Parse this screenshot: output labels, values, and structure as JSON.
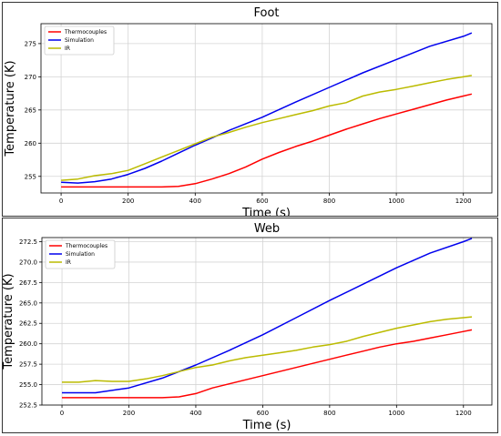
{
  "chart_data": [
    {
      "type": "line",
      "title": "Foot",
      "xlabel": "Time (s)",
      "ylabel": "Temperature (K)",
      "xlim": [
        -60,
        1285
      ],
      "ylim": [
        252.5,
        278.0
      ],
      "x_ticks": [
        0,
        200,
        400,
        600,
        800,
        1000,
        1200
      ],
      "y_ticks": [
        255,
        260,
        265,
        270,
        275
      ],
      "y_tick_labels": [
        "255",
        "260",
        "265",
        "270",
        "275"
      ],
      "grid": true,
      "legend_position": "top-left",
      "series": [
        {
          "name": "Thermocouples",
          "color": "#ff0000",
          "x": [
            0,
            100,
            200,
            300,
            350,
            400,
            450,
            500,
            550,
            600,
            650,
            700,
            750,
            800,
            850,
            900,
            950,
            1000,
            1050,
            1100,
            1150,
            1200,
            1225
          ],
          "y": [
            253.4,
            253.4,
            253.4,
            253.4,
            253.5,
            253.9,
            254.6,
            255.4,
            256.4,
            257.6,
            258.6,
            259.5,
            260.3,
            261.2,
            262.1,
            262.9,
            263.7,
            264.4,
            265.1,
            265.8,
            266.5,
            267.1,
            267.4
          ]
        },
        {
          "name": "Simulation",
          "color": "#0000ee",
          "x": [
            0,
            50,
            100,
            150,
            200,
            250,
            300,
            350,
            400,
            450,
            500,
            550,
            600,
            700,
            800,
            900,
            1000,
            1100,
            1200,
            1225
          ],
          "y": [
            254.1,
            254.0,
            254.2,
            254.6,
            255.3,
            256.2,
            257.3,
            258.5,
            259.7,
            260.8,
            261.9,
            262.9,
            263.9,
            266.2,
            268.4,
            270.6,
            272.6,
            274.6,
            276.1,
            276.6
          ]
        },
        {
          "name": "IR",
          "color": "#bbbb00",
          "x": [
            0,
            50,
            100,
            150,
            200,
            250,
            300,
            350,
            400,
            450,
            500,
            550,
            600,
            650,
            700,
            750,
            800,
            850,
            900,
            950,
            1000,
            1050,
            1100,
            1150,
            1200,
            1225
          ],
          "y": [
            254.4,
            254.6,
            255.1,
            255.4,
            255.9,
            256.9,
            257.9,
            258.9,
            259.9,
            260.9,
            261.6,
            262.4,
            263.1,
            263.7,
            264.3,
            264.9,
            265.6,
            266.1,
            267.1,
            267.7,
            268.1,
            268.6,
            269.1,
            269.6,
            270.0,
            270.2
          ]
        }
      ]
    },
    {
      "type": "line",
      "title": "Web",
      "xlabel": "Time (s)",
      "ylabel": "Temperature (K)",
      "xlim": [
        -60,
        1285
      ],
      "ylim": [
        252.5,
        273.0
      ],
      "x_ticks": [
        0,
        200,
        400,
        600,
        800,
        1000,
        1200
      ],
      "y_ticks": [
        252.5,
        255.0,
        257.5,
        260.0,
        262.5,
        265.0,
        267.5,
        270.0,
        272.5
      ],
      "y_tick_labels": [
        "252.5",
        "255.0",
        "257.5",
        "260.0",
        "262.5",
        "265.0",
        "267.5",
        "270.0",
        "272.5"
      ],
      "grid": true,
      "legend_position": "top-left",
      "series": [
        {
          "name": "Thermocouples",
          "color": "#ff0000",
          "x": [
            0,
            100,
            200,
            300,
            350,
            400,
            450,
            500,
            550,
            600,
            650,
            700,
            750,
            800,
            850,
            900,
            950,
            1000,
            1050,
            1100,
            1150,
            1200,
            1225
          ],
          "y": [
            253.4,
            253.4,
            253.4,
            253.4,
            253.5,
            253.9,
            254.6,
            255.1,
            255.6,
            256.1,
            256.6,
            257.1,
            257.6,
            258.1,
            258.6,
            259.1,
            259.6,
            260.0,
            260.3,
            260.7,
            261.1,
            261.5,
            261.7
          ]
        },
        {
          "name": "Simulation",
          "color": "#0000ee",
          "x": [
            0,
            100,
            200,
            300,
            400,
            500,
            600,
            700,
            800,
            900,
            1000,
            1100,
            1200,
            1225
          ],
          "y": [
            254.0,
            254.0,
            254.6,
            255.8,
            257.4,
            259.2,
            261.1,
            263.2,
            265.3,
            267.3,
            269.3,
            271.1,
            272.5,
            272.9
          ]
        },
        {
          "name": "IR",
          "color": "#bbbb00",
          "x": [
            0,
            50,
            100,
            150,
            200,
            250,
            300,
            350,
            400,
            450,
            500,
            550,
            600,
            650,
            700,
            750,
            800,
            850,
            900,
            950,
            1000,
            1050,
            1100,
            1150,
            1200,
            1225
          ],
          "y": [
            255.3,
            255.3,
            255.5,
            255.4,
            255.4,
            255.7,
            256.1,
            256.6,
            257.1,
            257.4,
            257.9,
            258.3,
            258.6,
            258.9,
            259.2,
            259.6,
            259.9,
            260.3,
            260.9,
            261.4,
            261.9,
            262.3,
            262.7,
            263.0,
            263.2,
            263.3
          ]
        }
      ]
    }
  ]
}
